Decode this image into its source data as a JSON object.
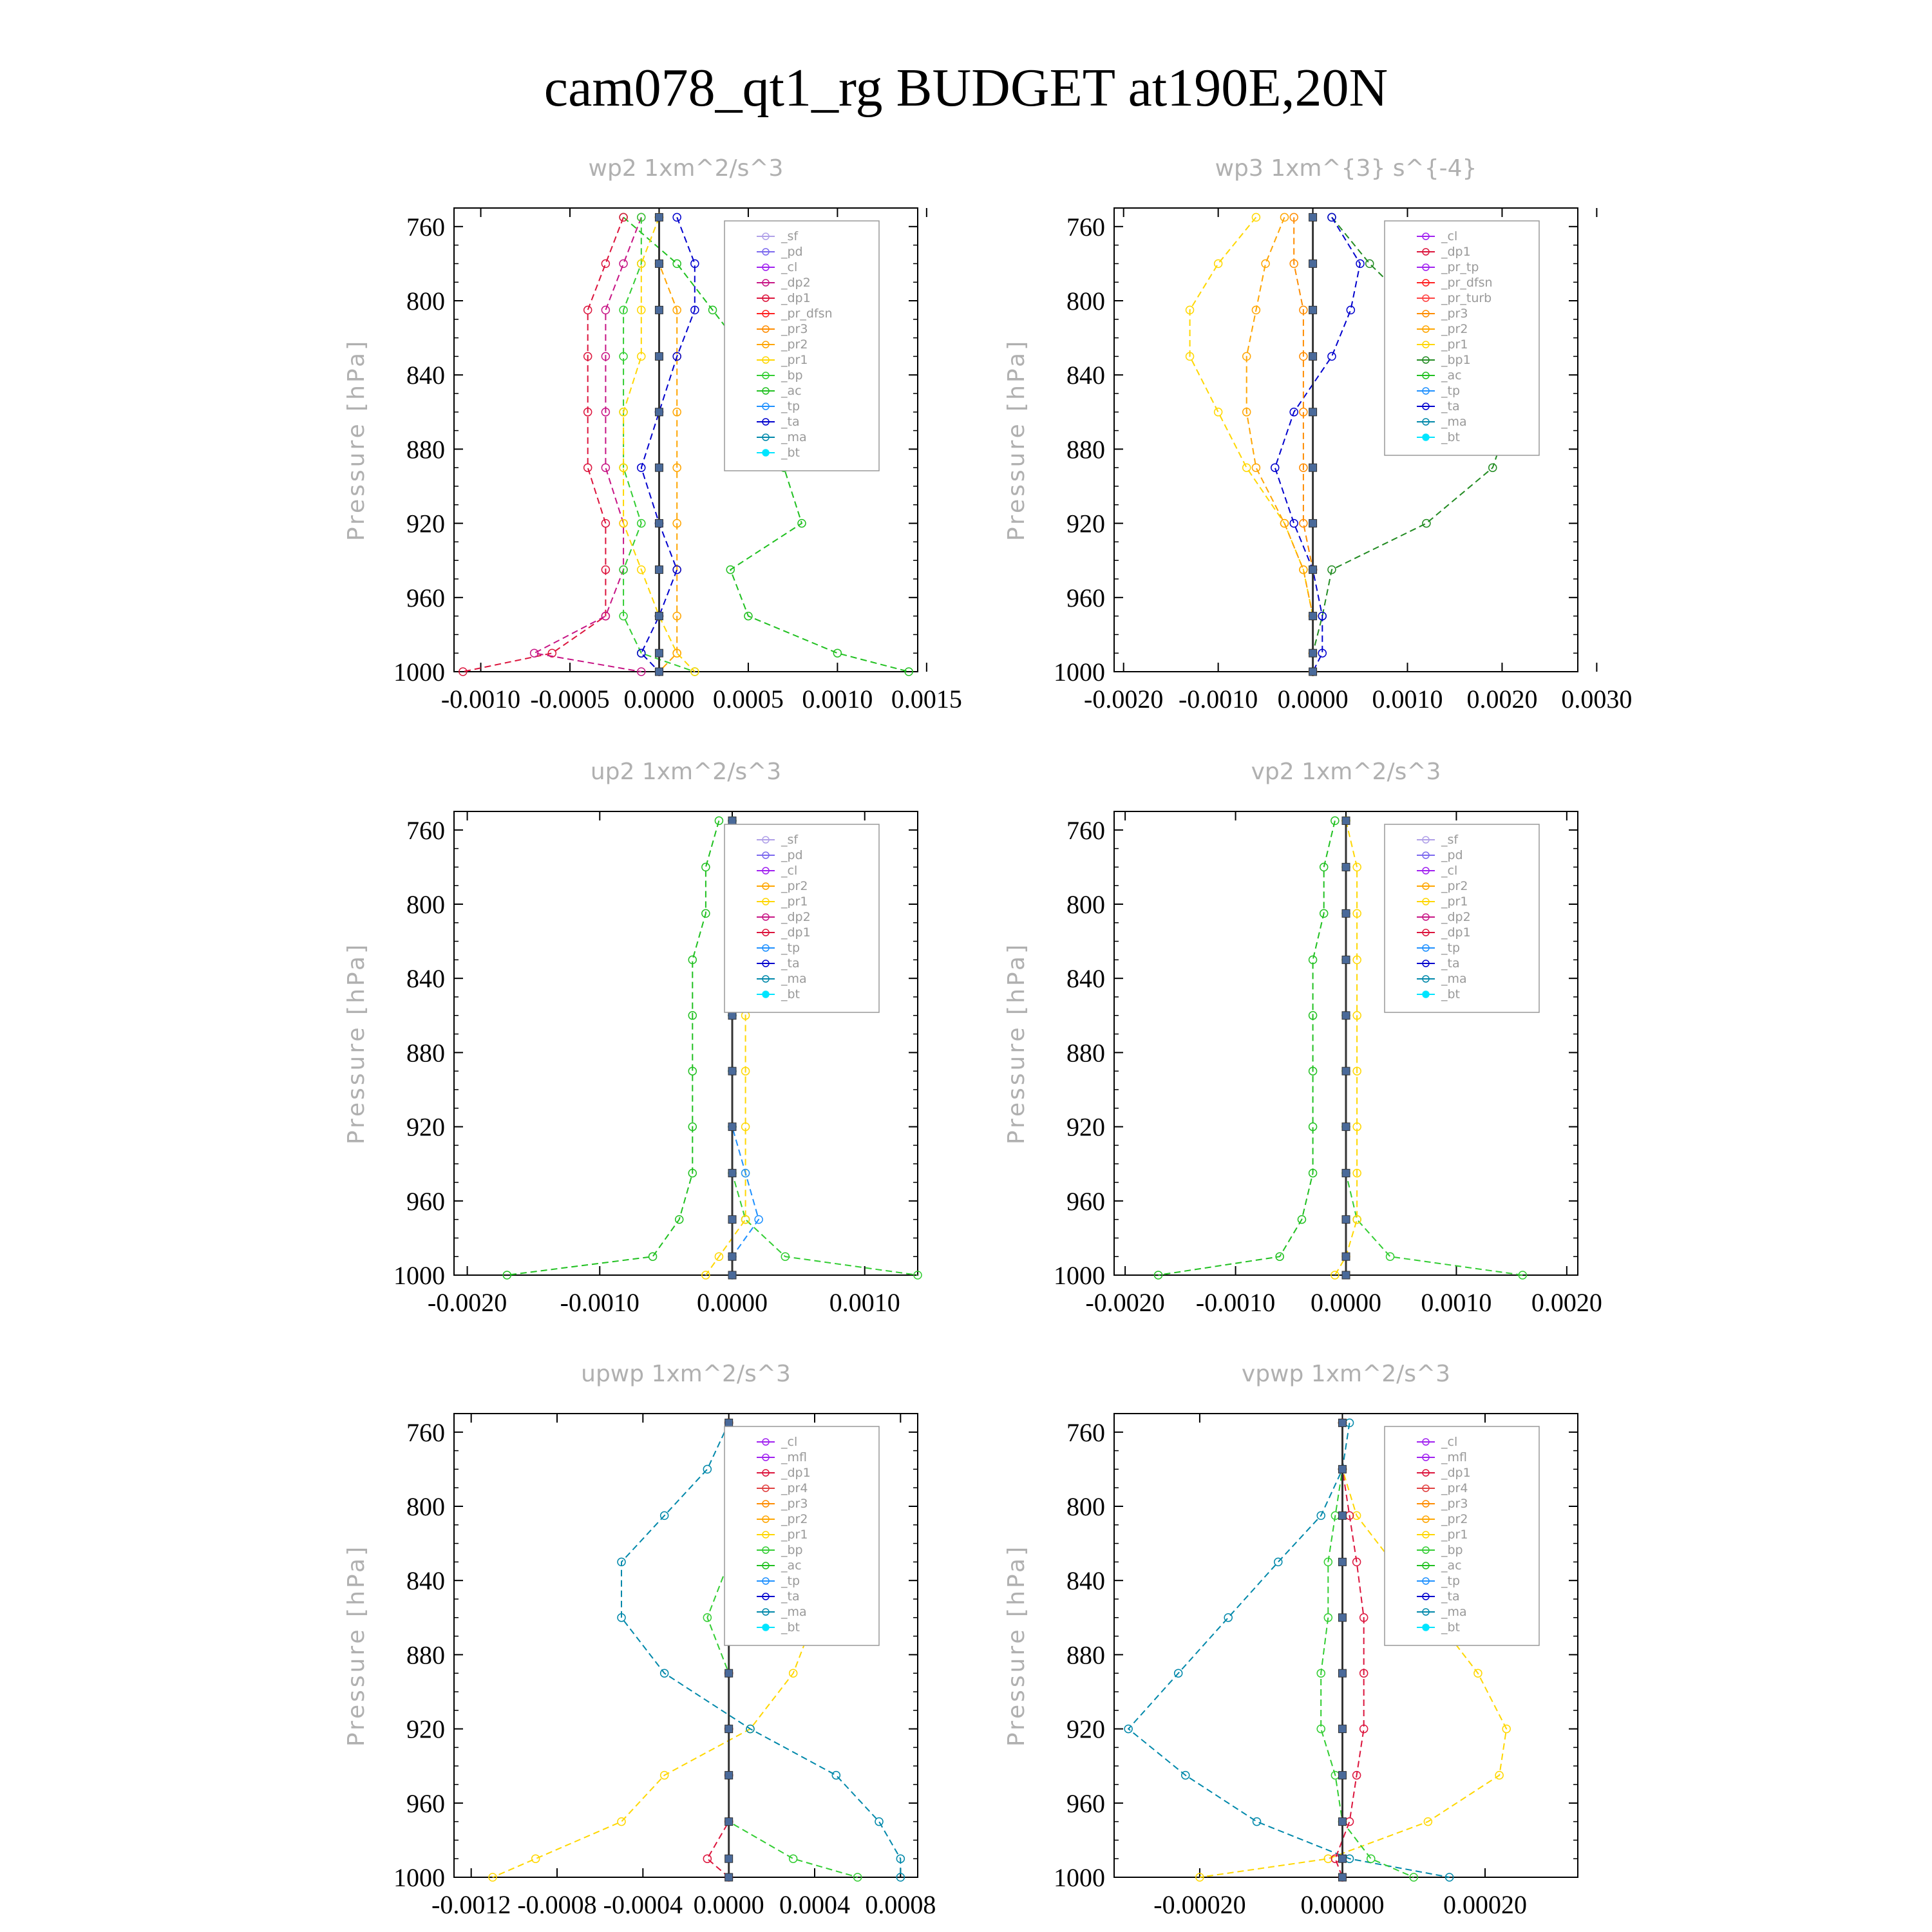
{
  "title": "cam078_qt1_rg  BUDGET at190E,20N",
  "colors": {
    "sf": "#b0a0e8",
    "pd": "#7b68ee",
    "cl": "#a020f0",
    "dp2": "#c71585",
    "dp1": "#dc143c",
    "pr_dfsn": "#ff2020",
    "pr3": "#ff8c00",
    "pr2": "#ffa500",
    "pr1": "#ffd700",
    "pr4": "#e04040",
    "pr_tp": "#a020f0",
    "pr_turb": "#ff4040",
    "bp": "#32cd32",
    "bp1": "#228b22",
    "ac": "#20c020",
    "tp": "#1e90ff",
    "ta": "#0000cd",
    "ma": "#0088aa",
    "bt": "#00e5ff",
    "mfl": "#a020f0"
  },
  "chart_data": [
    {
      "type": "line",
      "title": "wp2   1xm^2/s^3",
      "ylabel": "Pressure [hPa]",
      "ylim": [
        1000,
        750
      ],
      "yticks": [
        "760",
        "800",
        "840",
        "880",
        "920",
        "960",
        "1000"
      ],
      "xlim": [
        -0.00115,
        0.00145
      ],
      "xticks": [
        "-0.0010",
        "-0.0005",
        "0.0000",
        "0.0005",
        "0.0010",
        "0.0015"
      ],
      "legend": [
        "_sf",
        "_pd",
        "_cl",
        "_dp2",
        "_dp1",
        "_pr_dfsn",
        "_pr3",
        "_pr2",
        "_pr1",
        "_bp",
        "_ac",
        "_tp",
        "_ta",
        "_ma",
        "_bt"
      ],
      "p": [
        755,
        780,
        805,
        830,
        860,
        890,
        920,
        945,
        970,
        990,
        1000
      ],
      "series": [
        {
          "key": "ac",
          "name": "_ac",
          "values": [
            -0.0002,
            0.0001,
            0.0003,
            0.0005,
            0.0006,
            0.0007,
            0.0008,
            0.0004,
            0.0005,
            0.001,
            0.0014
          ]
        },
        {
          "key": "dp1",
          "name": "_dp1",
          "values": [
            -0.0002,
            -0.0003,
            -0.0004,
            -0.0004,
            -0.0004,
            -0.0004,
            -0.0003,
            -0.0003,
            -0.0003,
            -0.0006,
            -0.0011
          ]
        },
        {
          "key": "dp2",
          "name": "_dp2",
          "values": [
            -0.0001,
            -0.0002,
            -0.0003,
            -0.0003,
            -0.0003,
            -0.0003,
            -0.0002,
            -0.0002,
            -0.0003,
            -0.0007,
            -0.0001
          ]
        },
        {
          "key": "bp",
          "name": "_bp",
          "values": [
            -0.0001,
            -0.0001,
            -0.0002,
            -0.0002,
            -0.0002,
            -0.0002,
            -0.0001,
            -0.0002,
            -0.0002,
            -0.0001,
            0.0002
          ]
        },
        {
          "key": "pr1",
          "name": "_pr1",
          "values": [
            0.0,
            -0.0001,
            -0.0001,
            -0.0001,
            -0.0002,
            -0.0002,
            -0.0002,
            -0.0001,
            0.0,
            0.0001,
            0.0002
          ]
        },
        {
          "key": "pr2",
          "name": "_pr2",
          "values": [
            0.0,
            0.0,
            0.0001,
            0.0001,
            0.0001,
            0.0001,
            0.0001,
            0.0001,
            0.0001,
            0.0001,
            0.0
          ]
        },
        {
          "key": "ta",
          "name": "_ta",
          "values": [
            0.0001,
            0.0002,
            0.0002,
            0.0001,
            0.0,
            -0.0001,
            0.0,
            0.0001,
            0.0,
            -0.0001,
            0.0
          ]
        },
        {
          "key": "bt",
          "name": "_bt",
          "values": [
            0,
            0,
            0,
            0,
            0,
            0,
            0,
            0,
            0,
            0,
            0
          ]
        }
      ]
    },
    {
      "type": "line",
      "title": "wp3   1xm^{3} s^{-4}",
      "ylabel": "Pressure [hPa]",
      "ylim": [
        1000,
        750
      ],
      "yticks": [
        "760",
        "800",
        "840",
        "880",
        "920",
        "960",
        "1000"
      ],
      "xlim": [
        -0.0021,
        0.0028
      ],
      "xticks": [
        "-0.0020",
        "-0.0010",
        "0.0000",
        "0.0010",
        "0.0020",
        "0.0030"
      ],
      "legend": [
        "_cl",
        "_dp1",
        "_pr_tp",
        "_pr_dfsn",
        "_pr_turb",
        "_pr3",
        "_pr2",
        "_pr1",
        "_bp1",
        "_ac",
        "_tp",
        "_ta",
        "_ma",
        "_bt"
      ],
      "p": [
        755,
        780,
        805,
        830,
        860,
        890,
        920,
        945,
        970,
        990,
        1000
      ],
      "series": [
        {
          "key": "bp1",
          "name": "_bp1",
          "values": [
            0.0002,
            0.0006,
            0.0011,
            0.0016,
            0.0021,
            0.0019,
            0.0012,
            0.0002,
            0.0001,
            0.0,
            0.0
          ]
        },
        {
          "key": "pr1",
          "name": "_pr1",
          "values": [
            -0.0006,
            -0.001,
            -0.0013,
            -0.0013,
            -0.001,
            -0.0007,
            -0.0003,
            -0.0001,
            0.0,
            0.0,
            0.0
          ]
        },
        {
          "key": "pr2",
          "name": "_pr2",
          "values": [
            -0.0003,
            -0.0005,
            -0.0006,
            -0.0007,
            -0.0007,
            -0.0006,
            -0.0003,
            -0.0001,
            0.0,
            0.0,
            0.0
          ]
        },
        {
          "key": "ta",
          "name": "_ta",
          "values": [
            0.0002,
            0.0005,
            0.0004,
            0.0002,
            -0.0002,
            -0.0004,
            -0.0002,
            0.0,
            0.0001,
            0.0001,
            0.0
          ]
        },
        {
          "key": "pr3",
          "name": "_pr3",
          "values": [
            -0.0002,
            -0.0002,
            -0.0001,
            -0.0001,
            -0.0001,
            -0.0001,
            -0.0001,
            0.0,
            0.0,
            0.0,
            0.0
          ]
        },
        {
          "key": "bt",
          "name": "_bt",
          "values": [
            0,
            0,
            0,
            0,
            0,
            0,
            0,
            0,
            0,
            0,
            0
          ]
        }
      ]
    },
    {
      "type": "line",
      "title": "up2   1xm^2/s^3",
      "ylabel": "Pressure [hPa]",
      "ylim": [
        1000,
        750
      ],
      "yticks": [
        "760",
        "800",
        "840",
        "880",
        "920",
        "960",
        "1000"
      ],
      "xlim": [
        -0.0021,
        0.0014
      ],
      "xticks": [
        "-0.0020",
        "-0.0010",
        "0.0000",
        "0.0010"
      ],
      "legend": [
        "_sf",
        "_pd",
        "_cl",
        "_pr2",
        "_pr1",
        "_dp2",
        "_dp1",
        "_tp",
        "_ta",
        "_ma",
        "_bt"
      ],
      "p": [
        755,
        780,
        805,
        830,
        860,
        890,
        920,
        945,
        970,
        990,
        1000
      ],
      "series": [
        {
          "key": "ac",
          "name": "_dp1",
          "values": [
            -0.0001,
            -0.0002,
            -0.0002,
            -0.0003,
            -0.0003,
            -0.0003,
            -0.0003,
            -0.0003,
            -0.0004,
            -0.0006,
            -0.0017
          ]
        },
        {
          "key": "bp",
          "name": "_dp2",
          "values": [
            0.0,
            0.0,
            0.0,
            0.0,
            0.0,
            0.0,
            0.0,
            0.0,
            0.0001,
            0.0004,
            0.0014
          ]
        },
        {
          "key": "pr1",
          "name": "_pr1",
          "values": [
            0.0,
            0.0001,
            0.0001,
            0.0001,
            0.0001,
            0.0001,
            0.0001,
            0.0001,
            0.0001,
            -0.0001,
            -0.0002
          ]
        },
        {
          "key": "tp",
          "name": "_tp",
          "values": [
            0.0,
            0.0,
            0.0,
            0.0,
            0.0,
            0.0,
            0.0,
            0.0001,
            0.0002,
            0.0,
            0.0
          ]
        },
        {
          "key": "bt",
          "name": "_bt",
          "values": [
            0,
            0,
            0,
            0,
            0,
            0,
            0,
            0,
            0,
            0,
            0
          ]
        }
      ]
    },
    {
      "type": "line",
      "title": "vp2   1xm^2/s^3",
      "ylabel": "Pressure [hPa]",
      "ylim": [
        1000,
        750
      ],
      "yticks": [
        "760",
        "800",
        "840",
        "880",
        "920",
        "960",
        "1000"
      ],
      "xlim": [
        -0.0021,
        0.0021
      ],
      "xticks": [
        "-0.0020",
        "-0.0010",
        "0.0000",
        "0.0010",
        "0.0020"
      ],
      "legend": [
        "_sf",
        "_pd",
        "_cl",
        "_pr2",
        "_pr1",
        "_dp2",
        "_dp1",
        "_tp",
        "_ta",
        "_ma",
        "_bt"
      ],
      "p": [
        755,
        780,
        805,
        830,
        860,
        890,
        920,
        945,
        970,
        990,
        1000
      ],
      "series": [
        {
          "key": "ac",
          "name": "_dp1",
          "values": [
            -0.0001,
            -0.0002,
            -0.0002,
            -0.0003,
            -0.0003,
            -0.0003,
            -0.0003,
            -0.0003,
            -0.0004,
            -0.0006,
            -0.0017
          ]
        },
        {
          "key": "bp",
          "name": "_dp2",
          "values": [
            0.0,
            0.0,
            0.0,
            0.0,
            0.0,
            0.0,
            0.0,
            0.0,
            0.0001,
            0.0004,
            0.0016
          ]
        },
        {
          "key": "pr1",
          "name": "_pr1",
          "values": [
            0.0,
            0.0001,
            0.0001,
            0.0001,
            0.0001,
            0.0001,
            0.0001,
            0.0001,
            0.0001,
            0.0,
            -0.0001
          ]
        },
        {
          "key": "bt",
          "name": "_bt",
          "values": [
            0,
            0,
            0,
            0,
            0,
            0,
            0,
            0,
            0,
            0,
            0
          ]
        }
      ]
    },
    {
      "type": "line",
      "title": "upwp   1xm^2/s^3",
      "ylabel": "Pressure [hPa]",
      "ylim": [
        1000,
        750
      ],
      "yticks": [
        "760",
        "800",
        "840",
        "880",
        "920",
        "960",
        "1000"
      ],
      "xlim": [
        -0.00128,
        0.00088
      ],
      "xticks": [
        "-0.0012",
        "-0.0008",
        "-0.0004",
        "0.0000",
        "0.0004",
        "0.0008"
      ],
      "legend": [
        "_cl",
        "_mfl",
        "_dp1",
        "_pr4",
        "_pr3",
        "_pr2",
        "_pr1",
        "_bp",
        "_ac",
        "_tp",
        "_ta",
        "_ma",
        "_bt"
      ],
      "p": [
        755,
        780,
        805,
        830,
        860,
        890,
        920,
        945,
        970,
        990,
        1000
      ],
      "series": [
        {
          "key": "pr1",
          "name": "_pr1",
          "values": [
            0.0,
            0.0002,
            0.0003,
            0.0004,
            0.0004,
            0.0003,
            0.0001,
            -0.0003,
            -0.0005,
            -0.0009,
            -0.0011
          ]
        },
        {
          "key": "ma",
          "name": "_ma",
          "values": [
            0.0,
            -0.0001,
            -0.0003,
            -0.0005,
            -0.0005,
            -0.0003,
            0.0001,
            0.0005,
            0.0007,
            0.0008,
            0.0008
          ]
        },
        {
          "key": "bp",
          "name": "_bp",
          "values": [
            0.0,
            0.0,
            0.0,
            0.0,
            -0.0001,
            0.0,
            0.0,
            0.0,
            0.0,
            0.0003,
            0.0006
          ]
        },
        {
          "key": "dp1",
          "name": "_dp1",
          "values": [
            0.0,
            0.0,
            0.0,
            0.0,
            0.0,
            0.0,
            0.0,
            0.0,
            0.0,
            -0.0001,
            0.0
          ]
        },
        {
          "key": "bt",
          "name": "_bt",
          "values": [
            0,
            0,
            0,
            0,
            0,
            0,
            0,
            0,
            0,
            0,
            0
          ]
        }
      ]
    },
    {
      "type": "line",
      "title": "vpwp   1xm^2/s^3",
      "ylabel": "Pressure [hPa]",
      "ylim": [
        1000,
        750
      ],
      "yticks": [
        "760",
        "800",
        "840",
        "880",
        "920",
        "960",
        "1000"
      ],
      "xlim": [
        -0.00032,
        0.00033
      ],
      "xticks": [
        "-0.00020",
        "0.00000",
        "0.00020"
      ],
      "legend": [
        "_cl",
        "_mfl",
        "_dp1",
        "_pr4",
        "_pr3",
        "_pr2",
        "_pr1",
        "_bp",
        "_ac",
        "_tp",
        "_ta",
        "_ma",
        "_bt"
      ],
      "p": [
        755,
        780,
        805,
        830,
        860,
        890,
        920,
        945,
        970,
        990,
        1000
      ],
      "series": [
        {
          "key": "pr1",
          "name": "_pr1",
          "values": [
            0.0,
            0.0,
            2e-05,
            7e-05,
            0.00013,
            0.00019,
            0.00023,
            0.00022,
            0.00012,
            -2e-05,
            -0.0002
          ]
        },
        {
          "key": "ma",
          "name": "_ma",
          "values": [
            1e-05,
            0.0,
            -3e-05,
            -9e-05,
            -0.00016,
            -0.00023,
            -0.0003,
            -0.00022,
            -0.00012,
            1e-05,
            0.00015
          ]
        },
        {
          "key": "bp",
          "name": "_bp",
          "values": [
            0.0,
            0.0,
            -1e-05,
            -2e-05,
            -2e-05,
            -3e-05,
            -3e-05,
            -1e-05,
            0.0,
            4e-05,
            0.0001
          ]
        },
        {
          "key": "dp1",
          "name": "_dp1",
          "values": [
            0.0,
            0.0,
            1e-05,
            2e-05,
            3e-05,
            3e-05,
            3e-05,
            2e-05,
            1e-05,
            -1e-05,
            0.0
          ]
        },
        {
          "key": "bt",
          "name": "_bt",
          "values": [
            0,
            0,
            0,
            0,
            0,
            0,
            0,
            0,
            0,
            0,
            0
          ]
        }
      ]
    }
  ]
}
